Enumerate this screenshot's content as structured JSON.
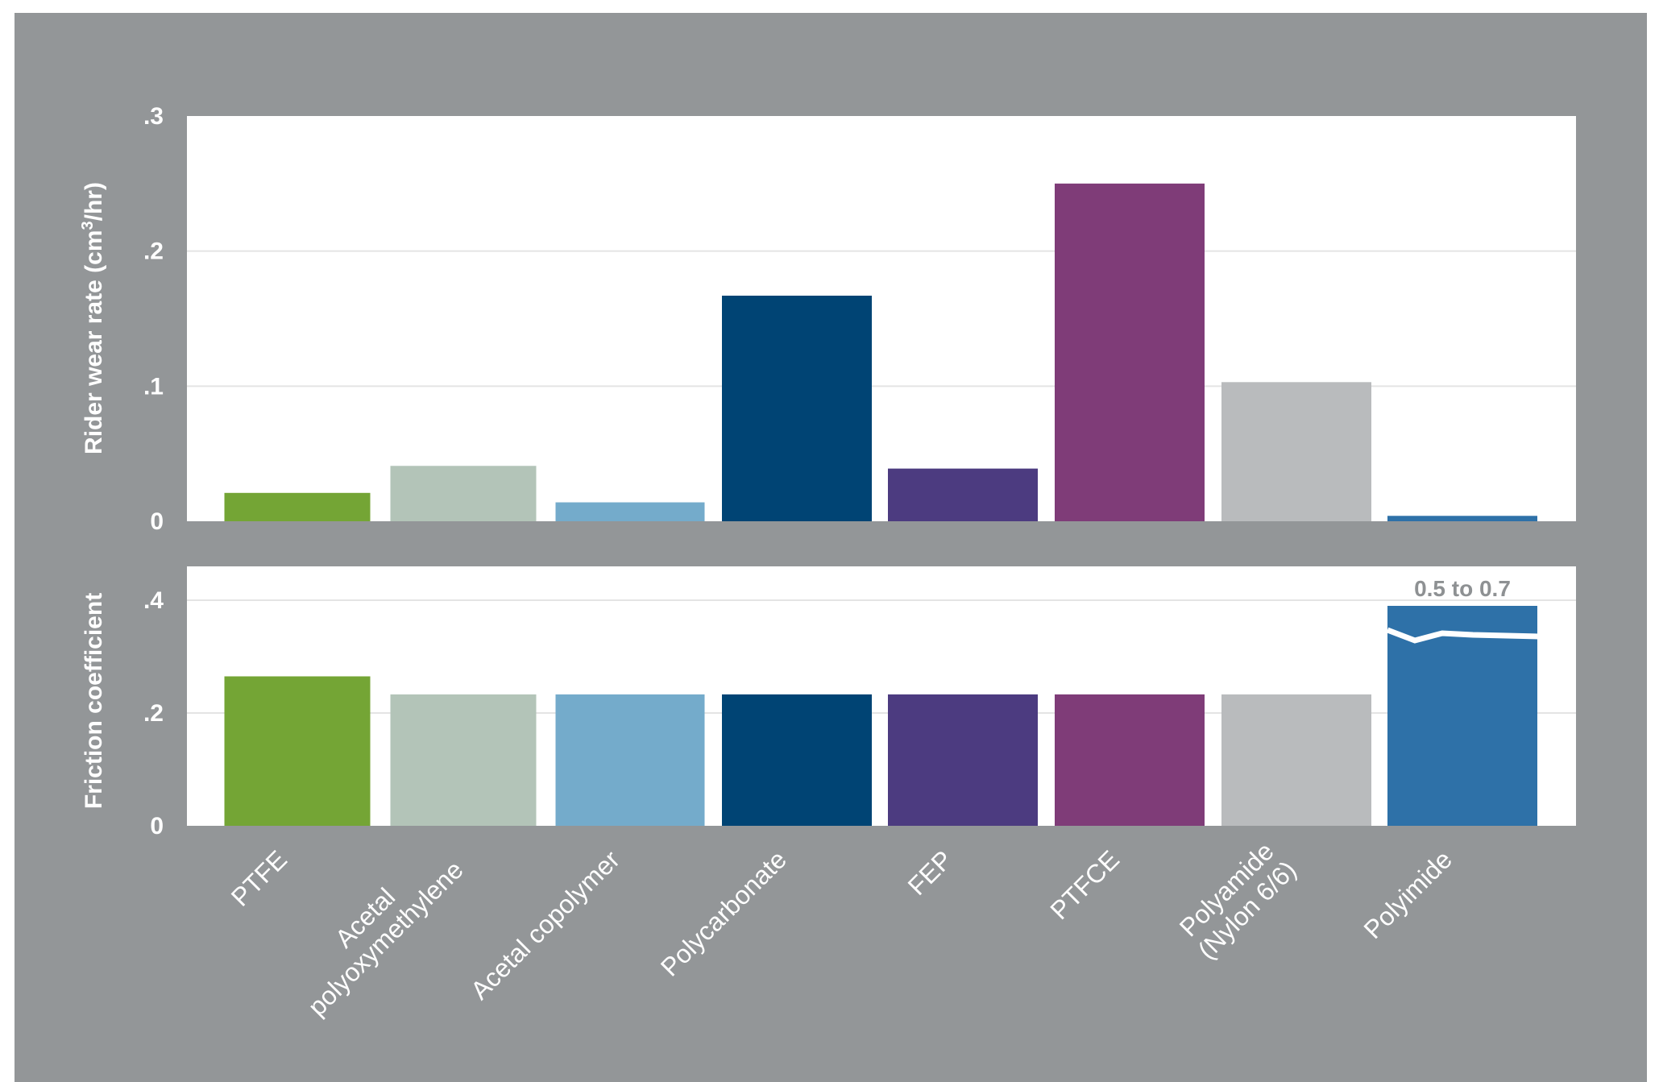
{
  "chart_data": [
    {
      "type": "bar",
      "title": "",
      "xlabel": "",
      "ylabel_main": "Rider wear rate (cm",
      "ylabel_sup": "3",
      "ylabel_tail": "/hr)",
      "ylim": [
        0,
        0.3
      ],
      "y_ticks": [
        0,
        0.1,
        0.2,
        0.3
      ],
      "y_tick_labels": [
        "0",
        ".1",
        ".2",
        ".3"
      ],
      "grid": true,
      "categories": [
        "PTFE",
        "Acetal polyoxymethylene",
        "Acetal copolymer",
        "Polycarbonate",
        "FEP",
        "PTFCE",
        "Polyamide (Nylon 6/6)",
        "Polyimide"
      ],
      "values": [
        0.021,
        0.041,
        0.014,
        0.167,
        0.039,
        0.25,
        0.103,
        0.004
      ]
    },
    {
      "type": "bar",
      "title": "",
      "ylabel": "Friction coefficient",
      "ylim": [
        0,
        0.46
      ],
      "y_ticks": [
        0,
        0.2,
        0.4
      ],
      "y_tick_labels": [
        "0",
        ".2",
        ".4"
      ],
      "grid": true,
      "categories": [
        "PTFE",
        "Acetal polyoxymethylene",
        "Acetal copolymer",
        "Polycarbonate",
        "FEP",
        "PTFCE",
        "Polyamide (Nylon 6/6)",
        "Polyimide"
      ],
      "values": [
        0.265,
        0.233,
        0.233,
        0.233,
        0.233,
        0.233,
        0.233,
        0.39
      ],
      "annotation": {
        "category": "Polyimide",
        "text": "0.5 to 0.7",
        "axis_break": true
      }
    }
  ],
  "x_tick_lines": [
    [
      "PTFE"
    ],
    [
      "Acetal",
      "polyoxymethylene"
    ],
    [
      "Acetal copolymer"
    ],
    [
      "Polycarbonate"
    ],
    [
      "FEP"
    ],
    [
      "PTFCE"
    ],
    [
      "Polyamide",
      "(Nylon 6/6)"
    ],
    [
      "Polyimide"
    ]
  ],
  "colors": {
    "background": "#939698",
    "plot_background": "#ffffff",
    "gridline": "#e4e4e4",
    "text": "#ffffff",
    "annotation_text": "#8e9193",
    "bars": [
      "#74a535",
      "#b3c4b8",
      "#74abcb",
      "#004474",
      "#4c3b80",
      "#7f3c78",
      "#b9bbbd",
      "#2e71a8"
    ]
  }
}
